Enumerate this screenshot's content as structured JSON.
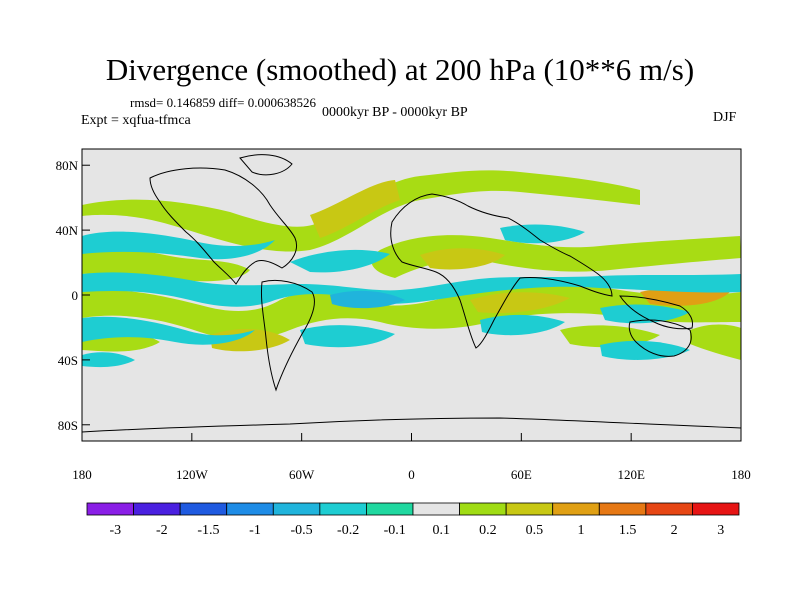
{
  "title": "Divergence (smoothed) at 200 hPa (10**6 m/s)",
  "stats": "rmsd= 0.146859 diff= 0.000638526",
  "experiment": "Expt = xqfua-tfmca",
  "period": "0000kyr BP - 0000kyr BP",
  "season": "DJF",
  "map": {
    "lat_range": [
      -90,
      90
    ],
    "lon_range": [
      -180,
      180
    ],
    "lat_ticks": [
      {
        "value": 80,
        "label": "80N"
      },
      {
        "value": 40,
        "label": "40N"
      },
      {
        "value": 0,
        "label": "0"
      },
      {
        "value": -40,
        "label": "40S"
      },
      {
        "value": -80,
        "label": "80S"
      }
    ],
    "lon_ticks": [
      {
        "value": -180,
        "label": "180"
      },
      {
        "value": -120,
        "label": "120W"
      },
      {
        "value": -60,
        "label": "60W"
      },
      {
        "value": 0,
        "label": "0"
      },
      {
        "value": 60,
        "label": "60E"
      },
      {
        "value": 120,
        "label": "120E"
      },
      {
        "value": 180,
        "label": "180"
      }
    ],
    "background_color": "#e5e5e5"
  },
  "colorbar": {
    "labels": [
      "-3",
      "-2",
      "-1.5",
      "-1",
      "-0.5",
      "-0.2",
      "-0.1",
      "0.1",
      "0.2",
      "0.5",
      "1",
      "1.5",
      "2",
      "3"
    ],
    "colors": [
      "#8a1ee6",
      "#4a20e0",
      "#1f5ae0",
      "#1e8ce6",
      "#20b4dc",
      "#1ecdd2",
      "#20d8a0",
      "#e5e5e5",
      "#a0dc14",
      "#c8c814",
      "#e0a014",
      "#e67814",
      "#e64614",
      "#e61414"
    ]
  }
}
